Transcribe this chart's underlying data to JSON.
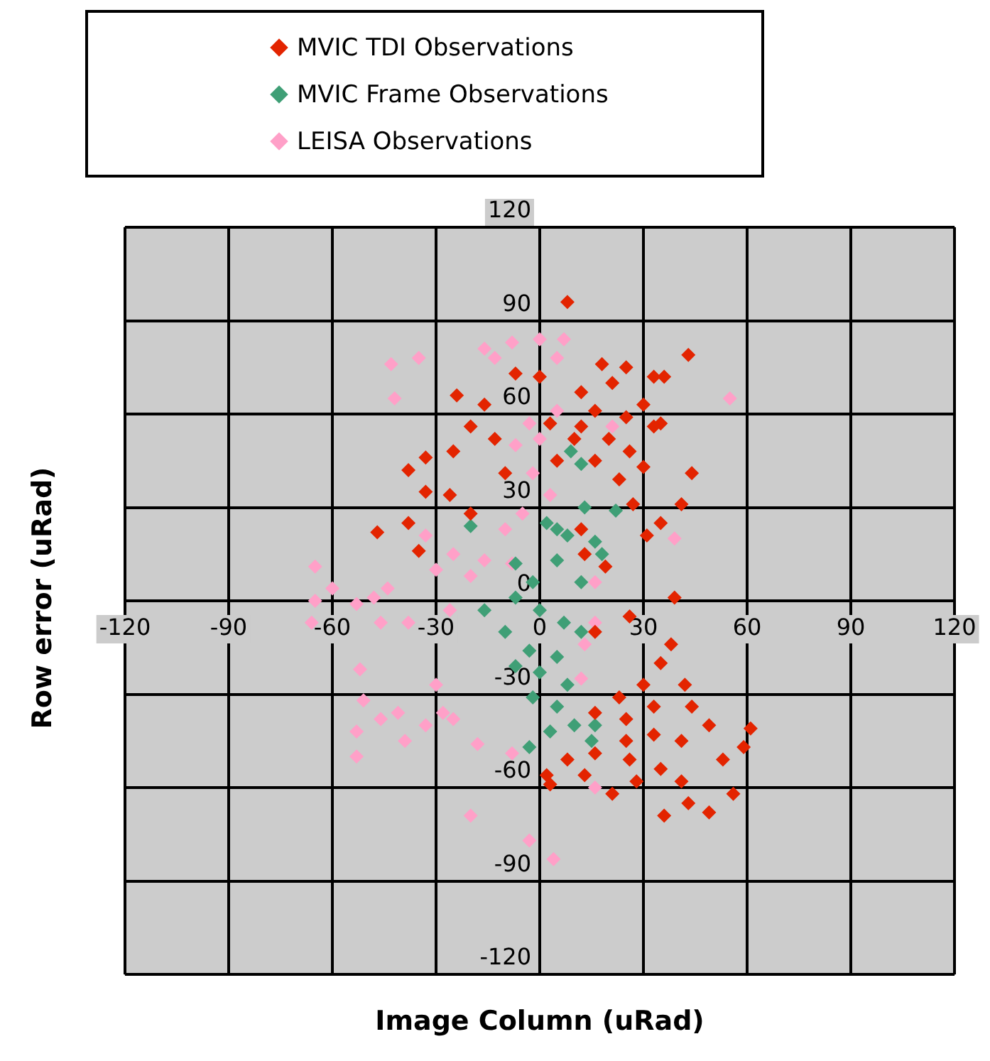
{
  "chart_data": {
    "type": "scatter",
    "xlabel": "Image Column (uRad)",
    "ylabel": "Row error (uRad)",
    "xlim": [
      -120,
      120
    ],
    "ylim": [
      -120,
      120
    ],
    "xticks": [
      -120,
      -90,
      -60,
      -30,
      0,
      30,
      60,
      90,
      120
    ],
    "yticks": [
      -120,
      -90,
      -60,
      -30,
      0,
      30,
      60,
      90,
      120
    ],
    "grid": true,
    "legend": "top",
    "marker": "diamond",
    "series": [
      {
        "name": "MVIC TDI Observations",
        "color": "#e32400",
        "x": [
          8,
          43,
          18,
          25,
          33,
          36,
          35,
          30,
          44,
          41,
          27,
          35,
          31,
          19,
          39,
          26,
          16,
          38,
          35,
          12,
          16,
          25,
          30,
          20,
          26,
          16,
          23,
          12,
          33,
          10,
          21,
          -24,
          -16,
          -7,
          0,
          -20,
          -13,
          -25,
          -33,
          -38,
          -33,
          -26,
          -20,
          -10,
          -47,
          -38,
          -35,
          5,
          3,
          12,
          13,
          23,
          30,
          42,
          16,
          25,
          33,
          44,
          49,
          61,
          59,
          53,
          41,
          33,
          25,
          16,
          8,
          2,
          3,
          21,
          28,
          35,
          41,
          36,
          43,
          49,
          56,
          13,
          26
        ],
        "values": [
          96,
          79,
          76,
          75,
          72,
          72,
          57,
          43,
          41,
          31,
          31,
          25,
          21,
          11,
          1,
          -5,
          -10,
          -14,
          -20,
          67,
          61,
          59,
          63,
          52,
          48,
          45,
          39,
          56,
          56,
          52,
          70,
          66,
          63,
          73,
          72,
          56,
          52,
          48,
          46,
          42,
          35,
          34,
          28,
          41,
          22,
          25,
          16,
          45,
          57,
          23,
          15,
          -31,
          -27,
          -27,
          -36,
          -38,
          -34,
          -34,
          -40,
          -41,
          -47,
          -51,
          -45,
          -43,
          -45,
          -49,
          -51,
          -56,
          -59,
          -62,
          -58,
          -54,
          -58,
          -69,
          -65,
          -68,
          -62,
          -56,
          -51
        ]
      },
      {
        "name": "MVIC Frame Observations",
        "color": "#3f9f76",
        "x": [
          9,
          12,
          13,
          22,
          2,
          8,
          16,
          18,
          5,
          -2,
          12,
          -7,
          -16,
          0,
          7,
          12,
          -10,
          -3,
          5,
          -7,
          0,
          8,
          -2,
          5,
          10,
          3,
          15,
          16,
          -3,
          -20,
          5,
          -7
        ],
        "values": [
          48,
          44,
          30,
          29,
          25,
          21,
          19,
          15,
          13,
          6,
          6,
          1,
          -3,
          -3,
          -7,
          -10,
          -10,
          -16,
          -18,
          -21,
          -23,
          -27,
          -31,
          -34,
          -40,
          -42,
          -45,
          -40,
          -47,
          24,
          23,
          12
        ]
      },
      {
        "name": "LEISA Observations",
        "color": "#ffa0c8",
        "x": [
          -16,
          -8,
          0,
          7,
          5,
          -13,
          -43,
          -35,
          -42,
          55,
          -3,
          0,
          -7,
          5,
          21,
          -2,
          3,
          -5,
          -10,
          -25,
          -16,
          -30,
          -20,
          -8,
          39,
          -65,
          -60,
          -65,
          -66,
          -53,
          -48,
          -44,
          -46,
          -38,
          -52,
          -51,
          -53,
          -53,
          -46,
          -41,
          -39,
          -33,
          -28,
          -25,
          -30,
          -18,
          -8,
          -20,
          -3,
          4,
          16,
          12,
          13,
          16,
          16,
          -26,
          -33
        ],
        "values": [
          81,
          83,
          84,
          84,
          78,
          78,
          76,
          78,
          65,
          65,
          57,
          52,
          50,
          61,
          56,
          41,
          34,
          28,
          23,
          15,
          13,
          10,
          8,
          12,
          20,
          11,
          4,
          0,
          -7,
          -1,
          1,
          4,
          -7,
          -7,
          -22,
          -32,
          -42,
          -50,
          -38,
          -36,
          -45,
          -40,
          -36,
          -38,
          -27,
          -46,
          -49,
          -69,
          -77,
          -83,
          -60,
          -25,
          -14,
          -7,
          6,
          -3,
          21
        ]
      }
    ]
  }
}
